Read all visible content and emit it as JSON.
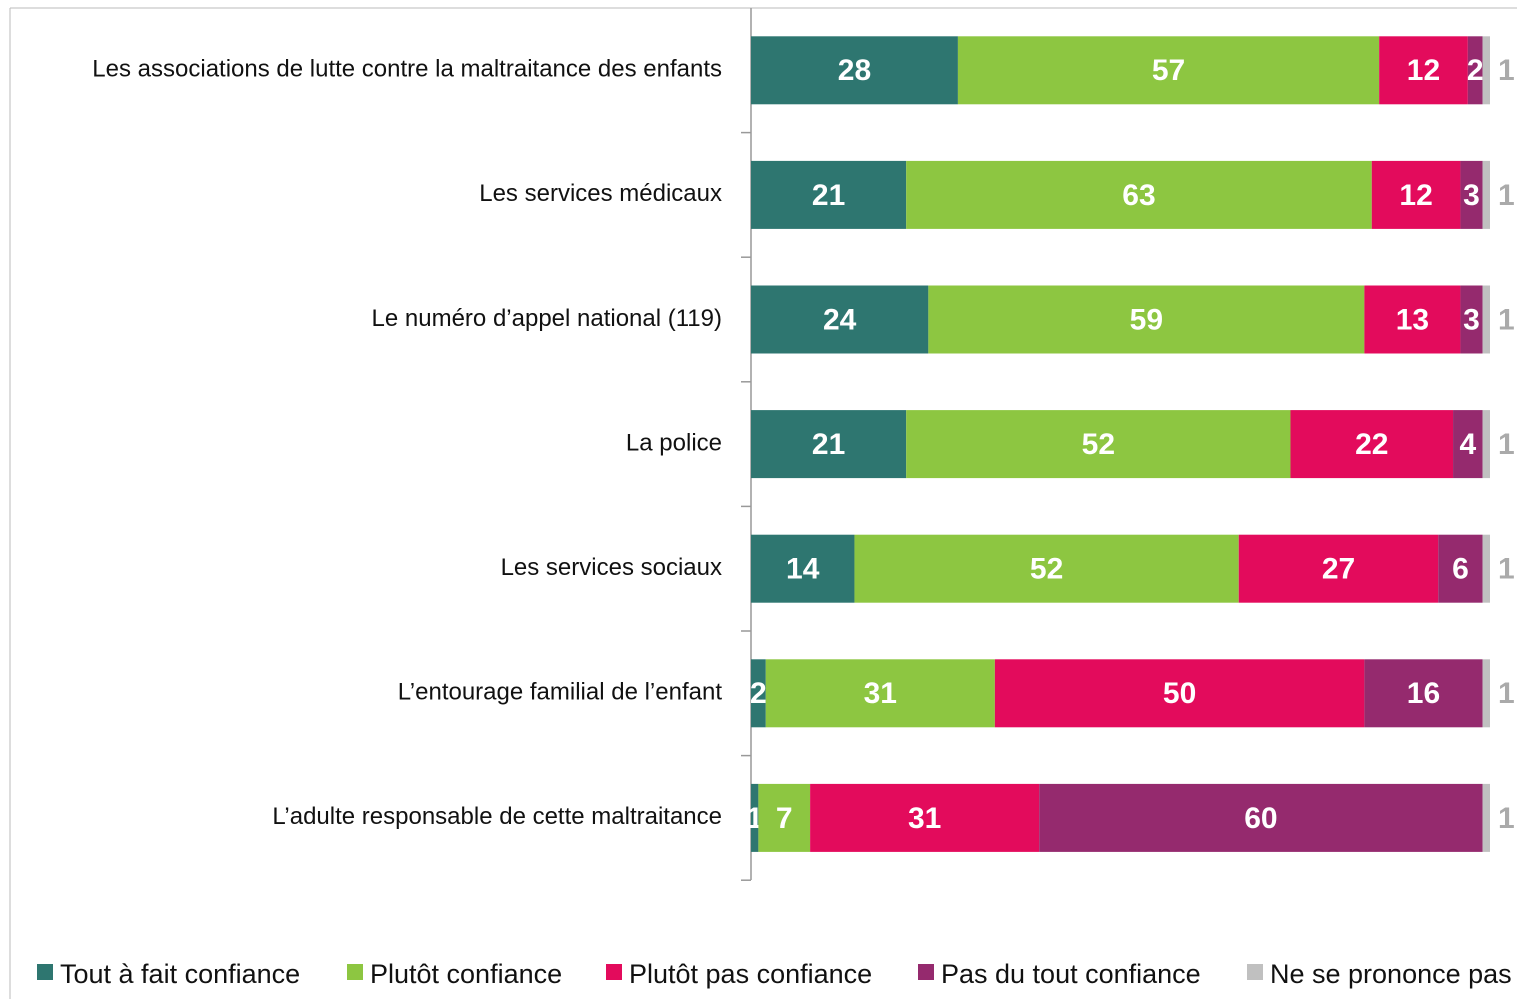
{
  "chart_data": {
    "type": "stacked-bar-horizontal",
    "categories": [
      "Les associations de lutte contre la maltraitance des enfants",
      "Les services médicaux",
      "Le numéro d’appel national (119)",
      "La police",
      "Les services sociaux",
      "L’entourage familial de l’enfant",
      "L’adulte responsable de cette maltraitance"
    ],
    "series": [
      {
        "name": "Tout à fait confiance",
        "color": "#2e7670",
        "values": [
          28,
          21,
          24,
          21,
          14,
          2,
          1
        ]
      },
      {
        "name": "Plutôt confiance",
        "color": "#8dc641",
        "values": [
          57,
          63,
          59,
          52,
          52,
          31,
          7
        ]
      },
      {
        "name": "Plutôt pas confiance",
        "color": "#e30b5c",
        "values": [
          12,
          12,
          13,
          22,
          27,
          50,
          31
        ]
      },
      {
        "name": "Pas du tout confiance",
        "color": "#952a6e",
        "values": [
          2,
          3,
          3,
          4,
          6,
          16,
          60
        ]
      },
      {
        "name": "Ne se prononce pas",
        "color": "#c0c0c0",
        "values": [
          1,
          1,
          1,
          1,
          1,
          1,
          1
        ]
      }
    ],
    "xlim": [
      0,
      100
    ],
    "legend": "bottom"
  }
}
